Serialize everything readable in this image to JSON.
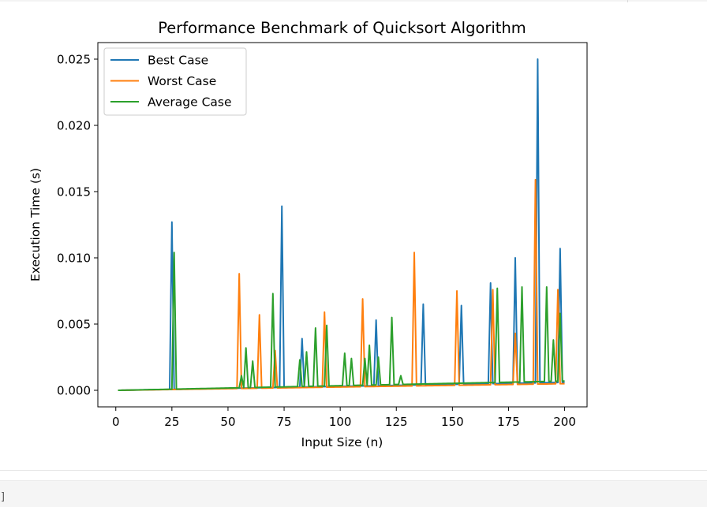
{
  "notebook": {
    "input_prompt": "]"
  },
  "chart_data": {
    "type": "line",
    "title": "Performance Benchmark of Quicksort Algorithm",
    "xlabel": "Input Size (n)",
    "ylabel": "Execution Time (s)",
    "xlim": [
      -8,
      210
    ],
    "ylim": [
      -0.00125,
      0.02625
    ],
    "xticks": [
      0,
      25,
      50,
      75,
      100,
      125,
      150,
      175,
      200
    ],
    "xtick_labels": [
      "0",
      "25",
      "50",
      "75",
      "100",
      "125",
      "150",
      "175",
      "200"
    ],
    "yticks": [
      0.0,
      0.005,
      0.01,
      0.015,
      0.02,
      0.025
    ],
    "ytick_labels": [
      "0.000",
      "0.005",
      "0.010",
      "0.015",
      "0.020",
      "0.025"
    ],
    "grid": false,
    "legend_position": "upper-left",
    "x_range": [
      1,
      200
    ],
    "series": [
      {
        "name": "Best Case",
        "color": "#1f77b4",
        "base_start": 0.0,
        "base_end": 0.0006,
        "spikes": [
          [
            25,
            0.0127
          ],
          [
            74,
            0.0139
          ],
          [
            83,
            0.0039
          ],
          [
            116,
            0.0053
          ],
          [
            137,
            0.0065
          ],
          [
            154,
            0.0064
          ],
          [
            167,
            0.0081
          ],
          [
            178,
            0.01
          ],
          [
            188,
            0.025
          ],
          [
            198,
            0.0107
          ]
        ]
      },
      {
        "name": "Worst Case",
        "color": "#ff7f0e",
        "base_start": 0.0,
        "base_end": 0.0005,
        "spikes": [
          [
            55,
            0.0088
          ],
          [
            64,
            0.0057
          ],
          [
            71,
            0.003
          ],
          [
            93,
            0.0059
          ],
          [
            110,
            0.0069
          ],
          [
            133,
            0.0104
          ],
          [
            152,
            0.0075
          ],
          [
            168,
            0.0076
          ],
          [
            178,
            0.0043
          ],
          [
            187,
            0.0159
          ],
          [
            197,
            0.0076
          ]
        ]
      },
      {
        "name": "Average Case",
        "color": "#2ca02c",
        "base_start": 0.0,
        "base_end": 0.0007,
        "spikes": [
          [
            26,
            0.0104
          ],
          [
            56,
            0.0011
          ],
          [
            58,
            0.0032
          ],
          [
            61,
            0.0022
          ],
          [
            70,
            0.0073
          ],
          [
            82,
            0.0023
          ],
          [
            85,
            0.0029
          ],
          [
            89,
            0.0047
          ],
          [
            94,
            0.0049
          ],
          [
            102,
            0.0028
          ],
          [
            105,
            0.0024
          ],
          [
            111,
            0.0024
          ],
          [
            113,
            0.0034
          ],
          [
            117,
            0.0025
          ],
          [
            123,
            0.0055
          ],
          [
            127,
            0.0011
          ],
          [
            170,
            0.0077
          ],
          [
            181,
            0.0078
          ],
          [
            192,
            0.0078
          ],
          [
            195,
            0.0038
          ],
          [
            198,
            0.0058
          ]
        ]
      }
    ]
  }
}
